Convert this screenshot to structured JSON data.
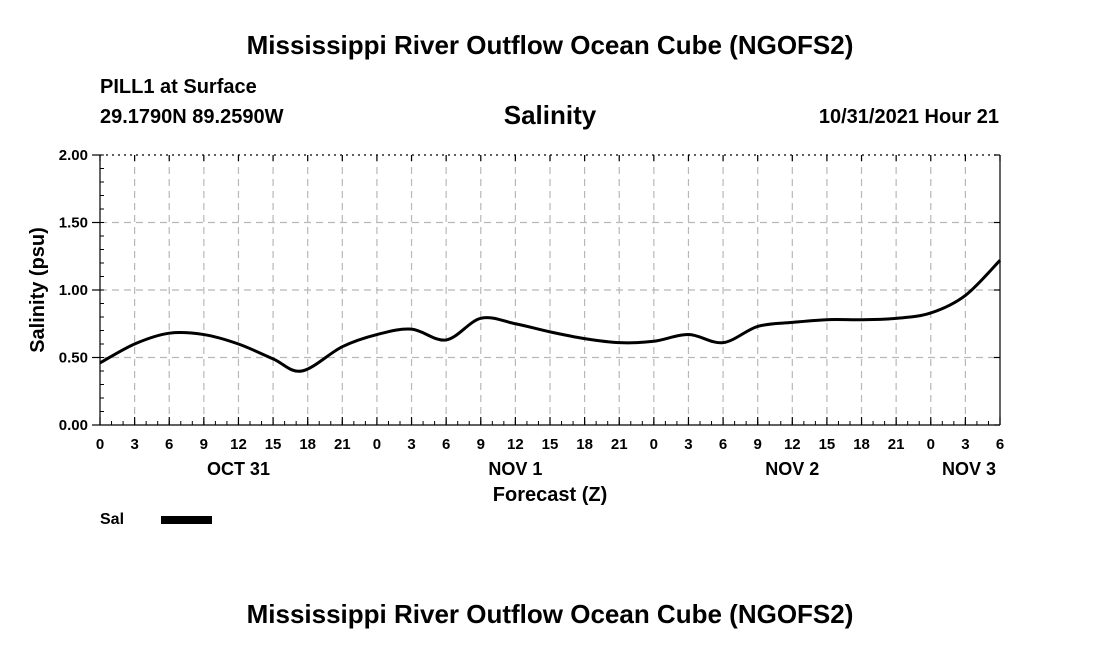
{
  "header": {
    "main_title": "Mississippi River Outflow Ocean Cube (NGOFS2)",
    "station": "PILL1 at Surface",
    "coords": "29.1790N  89.2590W",
    "run_time": "10/31/2021 Hour 21",
    "bottom_title": "Mississippi River Outflow Ocean Cube (NGOFS2)"
  },
  "chart_data": {
    "type": "line",
    "title": "Salinity",
    "xlabel": "Forecast (Z)",
    "ylabel": "Salinity (psu)",
    "ylim": [
      0,
      2
    ],
    "yticks": [
      "0.00",
      "0.50",
      "1.00",
      "1.50",
      "2.00"
    ],
    "xlim": [
      0,
      78
    ],
    "xtick_labels": [
      "0",
      "3",
      "6",
      "9",
      "12",
      "15",
      "18",
      "21",
      "0",
      "3",
      "6",
      "9",
      "12",
      "15",
      "18",
      "21",
      "0",
      "3",
      "6",
      "9",
      "12",
      "15",
      "18",
      "21",
      "0",
      "3",
      "6"
    ],
    "day_labels": [
      {
        "label": "OCT 31",
        "hour": 12
      },
      {
        "label": "NOV 1",
        "hour": 36
      },
      {
        "label": "NOV 2",
        "hour": 60
      },
      {
        "label": "NOV 3",
        "hour": 78
      }
    ],
    "grid": true,
    "legend": [
      {
        "name": "Sal",
        "color": "#000000"
      }
    ],
    "series": [
      {
        "name": "Sal",
        "x": [
          0,
          3,
          6,
          9,
          12,
          15,
          17.5,
          21,
          24,
          27,
          30,
          33,
          36,
          39,
          42,
          45,
          48,
          51,
          54,
          57,
          60,
          63,
          66,
          69,
          72,
          75,
          78
        ],
        "values": [
          0.46,
          0.6,
          0.68,
          0.67,
          0.6,
          0.49,
          0.4,
          0.58,
          0.67,
          0.71,
          0.63,
          0.79,
          0.75,
          0.69,
          0.64,
          0.61,
          0.62,
          0.67,
          0.61,
          0.73,
          0.76,
          0.78,
          0.78,
          0.79,
          0.83,
          0.96,
          1.22
        ]
      }
    ]
  }
}
